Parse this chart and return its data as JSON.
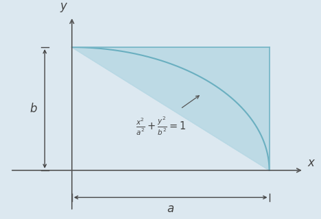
{
  "bg_color": "#dce8f0",
  "fill_color": "#b8d8e4",
  "fill_alpha": 0.85,
  "ellipse_color": "#6aafc0",
  "border_color": "#7ab8c8",
  "axis_color": "#555555",
  "text_color": "#444444",
  "dim_color": "#444444",
  "arrow_color": "#555555",
  "a": 1.6,
  "b": 1.0,
  "n_points": 300,
  "equation": "$\\frac{x^2}{a^2}+\\frac{y^2}{b^2}=1$",
  "label_x": "$x$",
  "label_y": "$y$",
  "label_a": "$a$",
  "label_b": "$b$"
}
